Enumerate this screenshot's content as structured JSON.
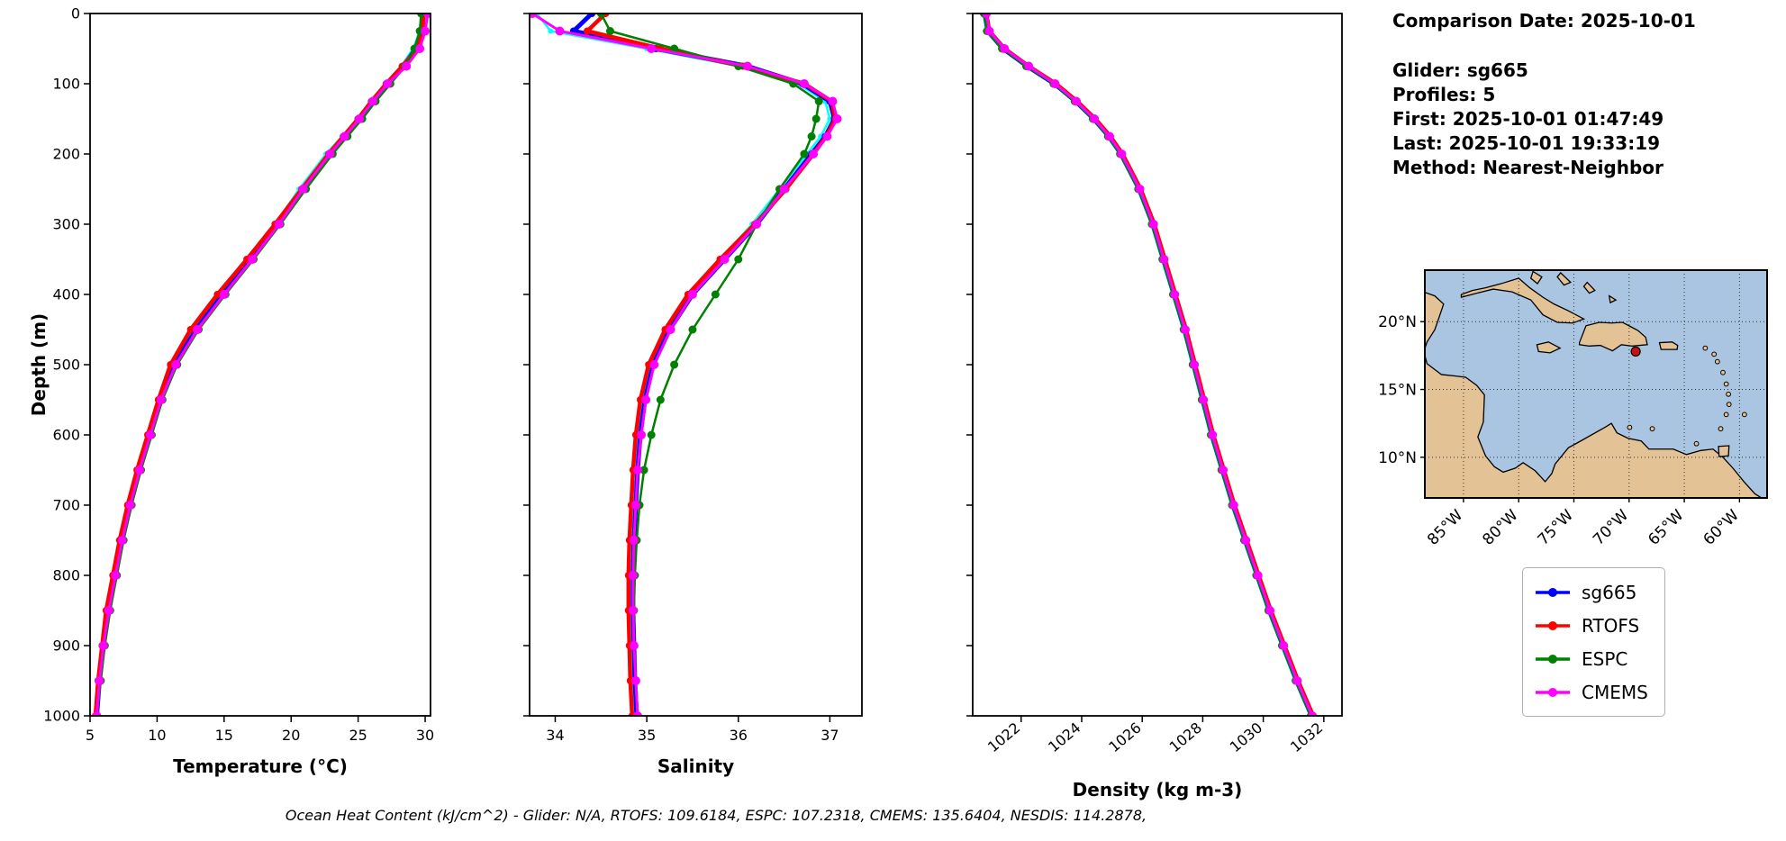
{
  "info_panel": {
    "comparison_date": "Comparison Date: 2025-10-01",
    "glider": "Glider: sg665",
    "profiles": "Profiles: 5",
    "first": "First: 2025-10-01 01:47:49",
    "last": "Last: 2025-10-01 19:33:19",
    "method": "Method: Nearest-Neighbor"
  },
  "legend": {
    "items": [
      {
        "label": "sg665",
        "color": "#0000ff"
      },
      {
        "label": "RTOFS",
        "color": "#ff0000"
      },
      {
        "label": "ESPC",
        "color": "#008000"
      },
      {
        "label": "CMEMS",
        "color": "#ff00ff"
      }
    ]
  },
  "caption": "Ocean Heat Content (kJ/cm^2) - Glider: N/A,  RTOFS: 109.6184,  ESPC: 107.2318,  CMEMS: 135.6404,  NESDIS: 114.2878,",
  "map": {
    "ocean_color": "#a9c5e2",
    "land_color": "#e3c296",
    "grid_color": "#333333",
    "marker": {
      "lon": -69.4,
      "lat": 17.8,
      "color": "#cc1111"
    },
    "extent": {
      "lon_min": -88.5,
      "lon_max": -57.5,
      "lat_min": 7.0,
      "lat_max": 23.8
    },
    "lat_ticks": [
      {
        "value": 20,
        "label": "20°N"
      },
      {
        "value": 15,
        "label": "15°N"
      },
      {
        "value": 10,
        "label": "10°N"
      }
    ],
    "lon_ticks": [
      {
        "value": -85,
        "label": "85°W"
      },
      {
        "value": -80,
        "label": "80°W"
      },
      {
        "value": -75,
        "label": "75°W"
      },
      {
        "value": -70,
        "label": "70°W"
      },
      {
        "value": -65,
        "label": "65°W"
      },
      {
        "value": -60,
        "label": "60°W"
      }
    ]
  },
  "chart_data": [
    {
      "type": "line",
      "xlabel": "Temperature (°C)",
      "ylabel": "Depth (m)",
      "xlim": [
        5,
        30.4
      ],
      "ylim": [
        0,
        1000
      ],
      "y_inverted": true,
      "grid": false,
      "xticks": [
        5,
        10,
        15,
        20,
        25,
        30
      ],
      "yticks": [
        0,
        100,
        200,
        300,
        400,
        500,
        600,
        700,
        800,
        900,
        1000
      ],
      "depths": [
        0,
        25,
        50,
        75,
        100,
        125,
        150,
        175,
        200,
        250,
        300,
        350,
        400,
        450,
        500,
        550,
        600,
        650,
        700,
        750,
        800,
        850,
        900,
        950,
        1000
      ],
      "series": [
        {
          "name": "sg665-profiles",
          "color": "#00ffff",
          "lw": 2.5,
          "marker": 3,
          "values": [
            29.8,
            29.6,
            29.1,
            28.2,
            27.0,
            25.9,
            24.9,
            23.8,
            22.6,
            20.6,
            18.8,
            16.8,
            14.6,
            12.6,
            11.1,
            10.1,
            9.4,
            8.6,
            7.9,
            7.3,
            6.8,
            6.3,
            5.9,
            5.6,
            5.4
          ]
        },
        {
          "name": "sg665",
          "color": "#0000ff",
          "lw": 5,
          "marker": 4,
          "values": [
            29.9,
            29.7,
            29.3,
            28.4,
            27.3,
            26.2,
            25.2,
            24.0,
            22.9,
            20.9,
            19.0,
            17.0,
            14.9,
            12.9,
            11.3,
            10.3,
            9.5,
            8.7,
            8.0,
            7.4,
            6.9,
            6.4,
            6.0,
            5.7,
            5.5
          ]
        },
        {
          "name": "RTOFS",
          "color": "#ff0000",
          "lw": 4.5,
          "marker": 4,
          "values": [
            29.9,
            29.8,
            29.4,
            28.3,
            27.1,
            26.0,
            25.0,
            23.9,
            22.8,
            20.8,
            18.8,
            16.7,
            14.5,
            12.5,
            11.0,
            10.1,
            9.3,
            8.5,
            7.8,
            7.2,
            6.7,
            6.2,
            5.9,
            5.6,
            5.4
          ]
        },
        {
          "name": "ESPC",
          "color": "#008000",
          "lw": 2.5,
          "marker": 4.5,
          "values": [
            29.7,
            29.6,
            29.2,
            28.5,
            27.4,
            26.3,
            25.3,
            24.2,
            23.1,
            21.1,
            19.2,
            17.2,
            15.1,
            13.1,
            11.5,
            10.4,
            9.6,
            8.8,
            8.1,
            7.5,
            7.0,
            6.5,
            6.1,
            5.8,
            5.5
          ]
        },
        {
          "name": "CMEMS",
          "color": "#ff00ff",
          "lw": 3,
          "marker": 5,
          "values": [
            30.2,
            30.0,
            29.6,
            28.6,
            27.2,
            26.1,
            25.1,
            24.0,
            22.9,
            20.9,
            19.1,
            17.1,
            15.0,
            13.0,
            11.4,
            10.3,
            9.5,
            8.7,
            8.0,
            7.4,
            6.9,
            6.4,
            6.0,
            5.7,
            5.5
          ]
        }
      ]
    },
    {
      "type": "line",
      "xlabel": "Salinity",
      "ylabel": "Depth (m)",
      "xlim": [
        33.72,
        37.35
      ],
      "ylim": [
        0,
        1000
      ],
      "y_inverted": true,
      "grid": false,
      "xticks": [
        34,
        35,
        36,
        37
      ],
      "yticks": [
        0,
        100,
        200,
        300,
        400,
        500,
        600,
        700,
        800,
        900,
        1000
      ],
      "depths": [
        0,
        25,
        50,
        75,
        100,
        125,
        150,
        175,
        200,
        250,
        300,
        350,
        400,
        450,
        500,
        550,
        600,
        650,
        700,
        750,
        800,
        850,
        900,
        950,
        1000
      ],
      "series": [
        {
          "name": "sg665-profiles",
          "color": "#00ffff",
          "lw": 2.5,
          "marker": 3,
          "values": [
            33.8,
            33.95,
            35.0,
            36.0,
            36.65,
            36.95,
            37.0,
            36.9,
            36.75,
            36.45,
            36.15,
            35.8,
            35.45,
            35.2,
            35.03,
            34.95,
            34.9,
            34.87,
            34.85,
            34.84,
            34.83,
            34.83,
            34.84,
            34.85,
            34.87
          ]
        },
        {
          "name": "sg665",
          "color": "#0000ff",
          "lw": 5,
          "marker": 4,
          "values": [
            34.4,
            34.2,
            35.1,
            36.1,
            36.7,
            37.0,
            37.05,
            36.95,
            36.8,
            36.5,
            36.2,
            35.85,
            35.5,
            35.25,
            35.07,
            34.98,
            34.93,
            34.9,
            34.88,
            34.86,
            34.85,
            34.85,
            34.86,
            34.87,
            34.89
          ]
        },
        {
          "name": "RTOFS",
          "color": "#ff0000",
          "lw": 4.5,
          "marker": 4,
          "values": [
            34.55,
            34.35,
            35.15,
            36.05,
            36.72,
            37.02,
            37.06,
            36.96,
            36.82,
            36.52,
            36.18,
            35.8,
            35.45,
            35.2,
            35.02,
            34.93,
            34.88,
            34.85,
            34.83,
            34.81,
            34.8,
            34.8,
            34.81,
            34.82,
            34.84
          ]
        },
        {
          "name": "ESPC",
          "color": "#008000",
          "lw": 2.5,
          "marker": 4.5,
          "values": [
            34.5,
            34.6,
            35.3,
            36.0,
            36.6,
            36.88,
            36.85,
            36.8,
            36.72,
            36.45,
            36.2,
            36.0,
            35.75,
            35.5,
            35.3,
            35.15,
            35.05,
            34.97,
            34.92,
            34.89,
            34.87,
            34.86,
            34.86,
            34.88,
            34.9
          ]
        },
        {
          "name": "CMEMS",
          "color": "#ff00ff",
          "lw": 3,
          "marker": 5,
          "values": [
            33.75,
            34.05,
            35.05,
            36.1,
            36.72,
            37.03,
            37.08,
            36.97,
            36.82,
            36.5,
            36.2,
            35.85,
            35.5,
            35.26,
            35.08,
            34.99,
            34.94,
            34.9,
            34.88,
            34.86,
            34.85,
            34.85,
            34.86,
            34.88,
            34.9
          ]
        }
      ]
    },
    {
      "type": "line",
      "xlabel": "Density (kg m-3)",
      "ylabel": "Depth (m)",
      "xlim": [
        1020.4,
        1032.6
      ],
      "ylim": [
        0,
        1000
      ],
      "y_inverted": true,
      "grid": false,
      "xticks": [
        1022,
        1024,
        1026,
        1028,
        1030,
        1032
      ],
      "yticks": [
        0,
        100,
        200,
        300,
        400,
        500,
        600,
        700,
        800,
        900,
        1000
      ],
      "depths": [
        0,
        25,
        50,
        75,
        100,
        125,
        150,
        175,
        200,
        250,
        300,
        350,
        400,
        450,
        500,
        550,
        600,
        650,
        700,
        750,
        800,
        850,
        900,
        950,
        1000
      ],
      "series": [
        {
          "name": "sg665-profiles",
          "color": "#00ffff",
          "lw": 2.5,
          "marker": 3,
          "values": [
            1020.75,
            1020.85,
            1021.35,
            1022.15,
            1023.05,
            1023.75,
            1024.35,
            1024.85,
            1025.25,
            1025.85,
            1026.3,
            1026.65,
            1027.0,
            1027.35,
            1027.65,
            1027.95,
            1028.25,
            1028.6,
            1028.95,
            1029.35,
            1029.75,
            1030.15,
            1030.6,
            1031.05,
            1031.55
          ]
        },
        {
          "name": "sg665",
          "color": "#0000ff",
          "lw": 5,
          "marker": 4,
          "values": [
            1020.8,
            1020.9,
            1021.4,
            1022.2,
            1023.1,
            1023.8,
            1024.4,
            1024.9,
            1025.3,
            1025.9,
            1026.35,
            1026.7,
            1027.05,
            1027.4,
            1027.7,
            1028.0,
            1028.3,
            1028.65,
            1029.0,
            1029.4,
            1029.8,
            1030.2,
            1030.65,
            1031.1,
            1031.6
          ]
        },
        {
          "name": "RTOFS",
          "color": "#ff0000",
          "lw": 4.5,
          "marker": 4,
          "values": [
            1020.85,
            1020.95,
            1021.45,
            1022.25,
            1023.15,
            1023.85,
            1024.45,
            1024.95,
            1025.35,
            1025.95,
            1026.4,
            1026.75,
            1027.1,
            1027.45,
            1027.75,
            1028.05,
            1028.35,
            1028.7,
            1029.05,
            1029.45,
            1029.85,
            1030.25,
            1030.7,
            1031.15,
            1031.65
          ]
        },
        {
          "name": "ESPC",
          "color": "#008000",
          "lw": 2.5,
          "marker": 4.5,
          "values": [
            1020.77,
            1020.87,
            1021.37,
            1022.17,
            1023.07,
            1023.77,
            1024.37,
            1024.87,
            1025.27,
            1025.87,
            1026.32,
            1026.67,
            1027.02,
            1027.37,
            1027.67,
            1027.97,
            1028.27,
            1028.62,
            1028.97,
            1029.37,
            1029.77,
            1030.17,
            1030.62,
            1031.07,
            1031.57
          ]
        },
        {
          "name": "CMEMS",
          "color": "#ff00ff",
          "lw": 3,
          "marker": 5,
          "values": [
            1020.85,
            1020.95,
            1021.45,
            1022.25,
            1023.12,
            1023.82,
            1024.42,
            1024.92,
            1025.32,
            1025.92,
            1026.37,
            1026.72,
            1027.07,
            1027.42,
            1027.72,
            1028.02,
            1028.32,
            1028.67,
            1029.02,
            1029.42,
            1029.82,
            1030.22,
            1030.67,
            1031.12,
            1031.62
          ]
        }
      ]
    }
  ]
}
